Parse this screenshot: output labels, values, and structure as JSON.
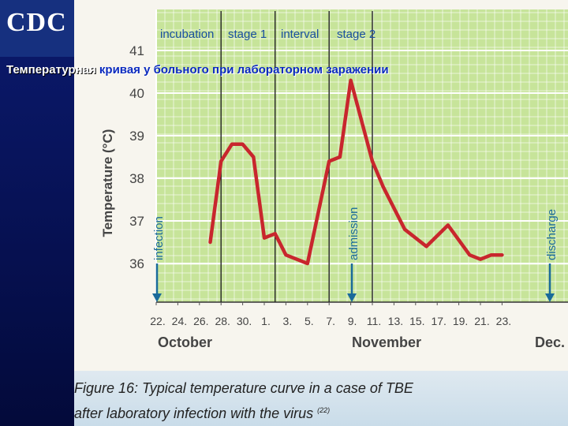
{
  "logo": {
    "text": "CDC"
  },
  "slide_title": {
    "part1": "Температурная",
    "part2": " кривая у больного при лабораторном заражении"
  },
  "caption": {
    "line1": "Figure 16: Typical temperature curve in a case of TBE",
    "line2": "after laboratory infection with the virus",
    "ref": "(22)"
  },
  "colors": {
    "plot_bg": "#c7e49a",
    "curve": "#c8262d",
    "grid": "#ffffff",
    "stage_text": "#1a4fa0",
    "marker": "#1a6a9a"
  },
  "chart_data": {
    "type": "line",
    "title": "",
    "ylabel": "Temperature (°C)",
    "ylim": [
      35.1,
      42.1
    ],
    "yticks": [
      "36",
      "37",
      "38",
      "39",
      "40",
      "41"
    ],
    "x_tick_labels": [
      "22.",
      "24.",
      "26.",
      "28.",
      "30.",
      "1.",
      "3.",
      "5.",
      "7.",
      "9.",
      "11.",
      "13.",
      "15.",
      "17.",
      "19.",
      "21.",
      "23."
    ],
    "x_dates": [
      "Oct 22",
      "Oct 24",
      "Oct 26",
      "Oct 28",
      "Oct 30",
      "Nov 1",
      "Nov 3",
      "Nov 5",
      "Nov 7",
      "Nov 9",
      "Nov 11",
      "Nov 13",
      "Nov 15",
      "Nov 17",
      "Nov 19",
      "Nov 21",
      "Nov 23"
    ],
    "month_labels": [
      "October",
      "November",
      "Dec."
    ],
    "stages": [
      "incubation",
      "stage 1",
      "interval",
      "stage 2"
    ],
    "markers": [
      "infection",
      "admission",
      "discharge"
    ],
    "series": [
      {
        "points": [
          {
            "x": "Oct 27",
            "y": 36.5
          },
          {
            "x": "Oct 28",
            "y": 38.4
          },
          {
            "x": "Oct 29",
            "y": 38.8
          },
          {
            "x": "Oct 30",
            "y": 38.8
          },
          {
            "x": "Oct 31",
            "y": 38.5
          },
          {
            "x": "Nov 1",
            "y": 36.6
          },
          {
            "x": "Nov 2",
            "y": 36.7
          },
          {
            "x": "Nov 3",
            "y": 36.2
          },
          {
            "x": "Nov 5",
            "y": 36.0
          },
          {
            "x": "Nov 7",
            "y": 38.4
          },
          {
            "x": "Nov 8",
            "y": 38.5
          },
          {
            "x": "Nov 9",
            "y": 40.3
          },
          {
            "x": "Nov 11",
            "y": 38.4
          },
          {
            "x": "Nov 12",
            "y": 37.8
          },
          {
            "x": "Nov 14",
            "y": 36.8
          },
          {
            "x": "Nov 16",
            "y": 36.4
          },
          {
            "x": "Nov 18",
            "y": 36.9
          },
          {
            "x": "Nov 20",
            "y": 36.2
          },
          {
            "x": "Nov 21",
            "y": 36.1
          },
          {
            "x": "Nov 22",
            "y": 36.2
          },
          {
            "x": "Nov 23",
            "y": 36.2
          }
        ]
      }
    ]
  }
}
